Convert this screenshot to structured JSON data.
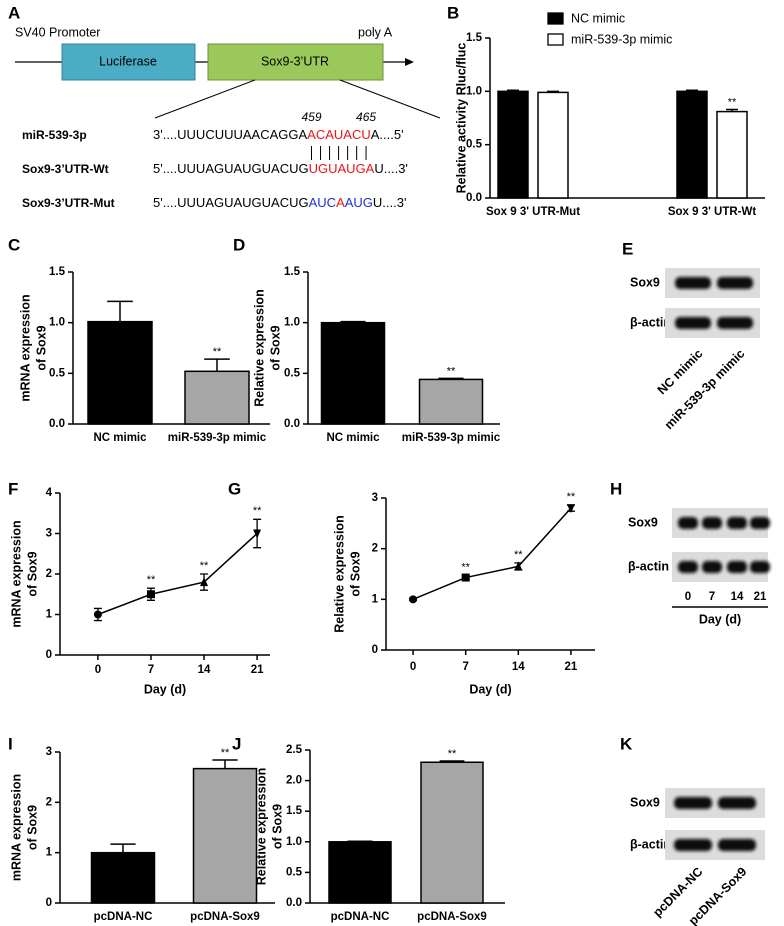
{
  "diagram": {
    "panel": "A",
    "promoter": "SV40 Promoter",
    "polya": "poly A",
    "boxes": [
      "Luciferase",
      "Sox9-3’UTR"
    ],
    "positions": [
      459,
      465
    ],
    "rows": [
      {
        "label": "miR-539-3p",
        "segments": [
          {
            "text": "3'....UUUCUUUAACAGGA",
            "color": "#000000"
          },
          {
            "text": "ACAUACU",
            "color": "#e8161c"
          },
          {
            "text": "A....5'",
            "color": "#000000"
          }
        ]
      },
      {
        "label": "Sox9-3’UTR-Wt",
        "segments": [
          {
            "text": "5'....UUUAGUAUGUACUG",
            "color": "#000000"
          },
          {
            "text": "UGUAUGA",
            "color": "#e8161c"
          },
          {
            "text": "U....3'",
            "color": "#000000"
          }
        ]
      },
      {
        "label": "Sox9-3’UTR-Mut",
        "segments": [
          {
            "text": "5'....UUUAGUAUGUACUG",
            "color": "#000000"
          },
          {
            "text": "AUC",
            "color": "#1f2fd6"
          },
          {
            "text": "A",
            "color": "#e8161c"
          },
          {
            "text": "AUG",
            "color": "#1f2fd6"
          },
          {
            "text": "U....3'",
            "color": "#000000"
          }
        ]
      }
    ]
  },
  "chart_data": [
    {
      "panel": "B",
      "type": "bar",
      "ylabel": [
        "Relative activity Rluc/fluc"
      ],
      "categories": [
        "Sox 9 3' UTR-Mut",
        "Sox 9 3' UTR-Wt"
      ],
      "series": [
        {
          "name": "NC mimic",
          "color": "#000000",
          "values": [
            1.0,
            1.0
          ],
          "errors": [
            0.01,
            0.01
          ],
          "significance": [
            null,
            null
          ]
        },
        {
          "name": "miR-539-3p mimic",
          "color": "#ffffff",
          "values": [
            0.99,
            0.81
          ],
          "errors": [
            0.01,
            0.02
          ],
          "significance": [
            null,
            "**"
          ]
        }
      ],
      "ylim": [
        0,
        1.5
      ],
      "yticks": [
        {
          "value": 0,
          "label": "0.0"
        },
        0.5,
        {
          "value": 1,
          "label": "1.0"
        },
        1.5
      ],
      "legend": "top"
    },
    {
      "panel": "C",
      "type": "bar",
      "ylabel": [
        "mRNA expression",
        "of Sox9"
      ],
      "categories": [
        "NC mimic",
        "miR-539-3p mimic"
      ],
      "values": [
        1.01,
        0.52
      ],
      "errors": [
        0.2,
        0.12
      ],
      "significance": [
        null,
        "**"
      ],
      "colors": [
        "#000000",
        "#a6a6a6"
      ],
      "ylim": [
        0,
        1.5
      ],
      "yticks": [
        {
          "value": 0,
          "label": "0.0"
        },
        0.5,
        {
          "value": 1,
          "label": "1.0"
        },
        1.5
      ]
    },
    {
      "panel": "D",
      "type": "bar",
      "ylabel": [
        "Relative expression",
        "of Sox9"
      ],
      "categories": [
        "NC mimic",
        "miR-539-3p mimic"
      ],
      "values": [
        1.0,
        0.44
      ],
      "errors": [
        0.01,
        0.01
      ],
      "significance": [
        null,
        "**"
      ],
      "colors": [
        "#000000",
        "#a6a6a6"
      ],
      "ylim": [
        0,
        1.5
      ],
      "yticks": [
        {
          "value": 0,
          "label": "0.0"
        },
        0.5,
        {
          "value": 1,
          "label": "1.0"
        },
        1.5
      ]
    },
    {
      "panel": "F",
      "type": "line",
      "ylabel": [
        "mRNA expression",
        "of Sox9"
      ],
      "xlabel": "Day (d)",
      "x": [
        0,
        7,
        14,
        21
      ],
      "values": [
        1.0,
        1.5,
        1.8,
        3.0
      ],
      "errors": [
        0.15,
        0.15,
        0.2,
        0.35
      ],
      "significance": [
        null,
        "**",
        "**",
        "**"
      ],
      "markers": [
        "circle",
        "square",
        "triangle",
        "triangle-down"
      ],
      "color": "#000000",
      "xlim": [
        -5,
        22.7
      ],
      "xticks": [
        0,
        7,
        14,
        21
      ],
      "ylim": [
        0,
        4
      ],
      "yticks": [
        0,
        1,
        2,
        3,
        4
      ]
    },
    {
      "panel": "G",
      "type": "line",
      "ylabel": [
        "Relative expression",
        "of Sox9"
      ],
      "xlabel": "Day (d)",
      "x": [
        0,
        7,
        14,
        21
      ],
      "values": [
        1.0,
        1.43,
        1.65,
        2.8
      ],
      "errors": [
        0.02,
        0.04,
        0.07,
        0.06
      ],
      "significance": [
        null,
        "**",
        "**",
        "**"
      ],
      "markers": [
        "circle",
        "square",
        "triangle",
        "triangle-down"
      ],
      "color": "#000000",
      "xlim": [
        -3.6,
        24.2
      ],
      "xticks": [
        0,
        7,
        14,
        21
      ],
      "ylim": [
        0,
        3
      ],
      "yticks": [
        0,
        1,
        2,
        3
      ]
    },
    {
      "panel": "I",
      "type": "bar",
      "ylabel": [
        "mRNA expression",
        "of Sox9"
      ],
      "categories": [
        "pcDNA-NC",
        "pcDNA-Sox9"
      ],
      "values": [
        1.0,
        2.67
      ],
      "errors": [
        0.17,
        0.17
      ],
      "significance": [
        null,
        "**"
      ],
      "colors": [
        "#000000",
        "#a6a6a6"
      ],
      "ylim": [
        0,
        3
      ],
      "yticks": [
        0,
        1,
        2,
        3
      ]
    },
    {
      "panel": "J",
      "type": "bar",
      "ylabel": [
        "Relative expression",
        "of Sox9"
      ],
      "categories": [
        "pcDNA-NC",
        "pcDNA-Sox9"
      ],
      "values": [
        1.0,
        2.3
      ],
      "errors": [
        0.01,
        0.02
      ],
      "significance": [
        null,
        "**"
      ],
      "colors": [
        "#000000",
        "#a6a6a6"
      ],
      "ylim": [
        0,
        2.5
      ],
      "yticks": [
        {
          "value": 0,
          "label": "0.0"
        },
        0.5,
        {
          "value": 1,
          "label": "1.0"
        },
        1.5,
        {
          "value": 2,
          "label": "2.0"
        },
        2.5
      ]
    }
  ],
  "blots": [
    {
      "panel": "E",
      "rows": [
        "Sox9",
        "β-actin"
      ],
      "lanes": [
        "NC mimic",
        "miR-539-3p mimic"
      ]
    },
    {
      "panel": "H",
      "rows": [
        "Sox9",
        "β-actin"
      ],
      "lanes": [
        "0",
        "7",
        "14",
        "21"
      ],
      "lane_title": "Day (d)"
    },
    {
      "panel": "K",
      "rows": [
        "Sox9",
        "β-actin"
      ],
      "lanes": [
        "pcDNA-NC",
        "pcDNA-Sox9"
      ]
    }
  ]
}
